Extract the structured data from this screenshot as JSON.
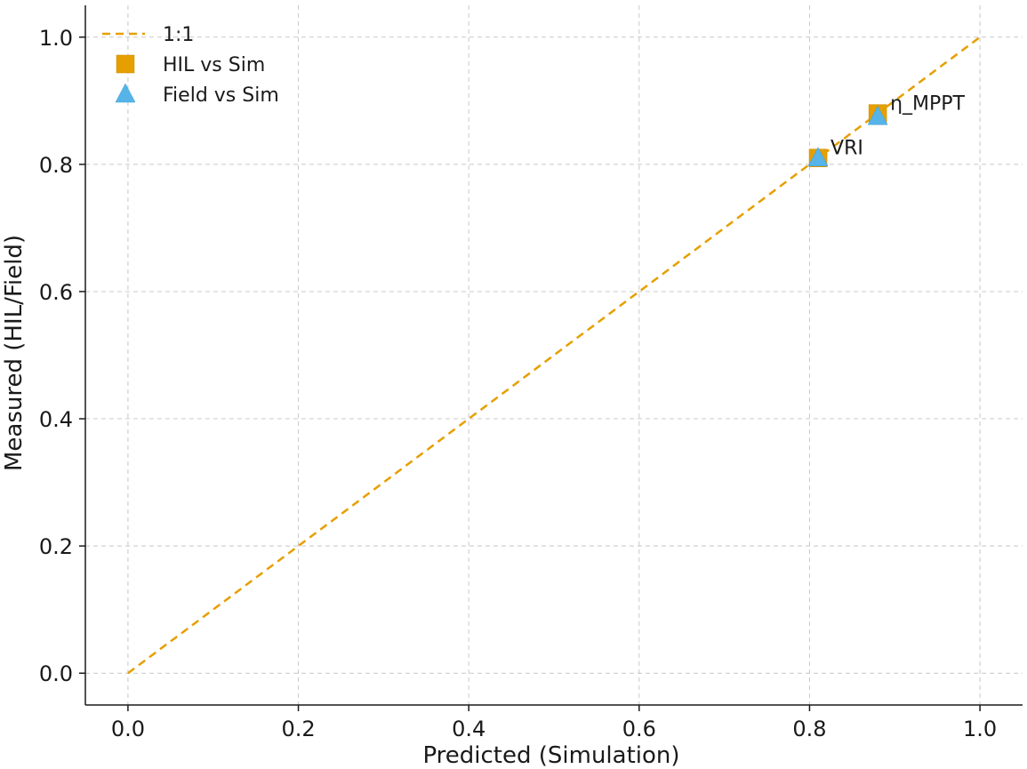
{
  "chart_data": {
    "type": "scatter",
    "title": "",
    "xlabel": "Predicted (Simulation)",
    "ylabel": "Measured (HIL/Field)",
    "xlim": [
      -0.05,
      1.05
    ],
    "ylim": [
      -0.05,
      1.05
    ],
    "xticks": [
      0.0,
      0.2,
      0.4,
      0.6,
      0.8,
      1.0
    ],
    "yticks": [
      0.0,
      0.2,
      0.4,
      0.6,
      0.8,
      1.0
    ],
    "xtick_labels": [
      "0.0",
      "0.2",
      "0.4",
      "0.6",
      "0.8",
      "1.0"
    ],
    "ytick_labels": [
      "0.0",
      "0.2",
      "0.4",
      "0.6",
      "0.8",
      "1.0"
    ],
    "grid": true,
    "legend_placement": "top-left",
    "reference_line": {
      "name": "1:1",
      "x": [
        0.0,
        1.0
      ],
      "y": [
        0.0,
        1.0
      ],
      "color": "#E69F00",
      "style": "dashed"
    },
    "series": [
      {
        "name": "HIL vs Sim",
        "marker": "square",
        "color": "#E69F00",
        "points": [
          {
            "x": 0.81,
            "y": 0.81
          },
          {
            "x": 0.88,
            "y": 0.88
          }
        ]
      },
      {
        "name": "Field vs Sim",
        "marker": "triangle",
        "color": "#56B4E9",
        "points": [
          {
            "x": 0.81,
            "y": 0.81
          },
          {
            "x": 0.88,
            "y": 0.875
          }
        ]
      }
    ],
    "annotations": [
      {
        "text": "VRI",
        "x": 0.81,
        "y": 0.81
      },
      {
        "text": "η_MPPT",
        "x": 0.88,
        "y": 0.88
      }
    ]
  }
}
